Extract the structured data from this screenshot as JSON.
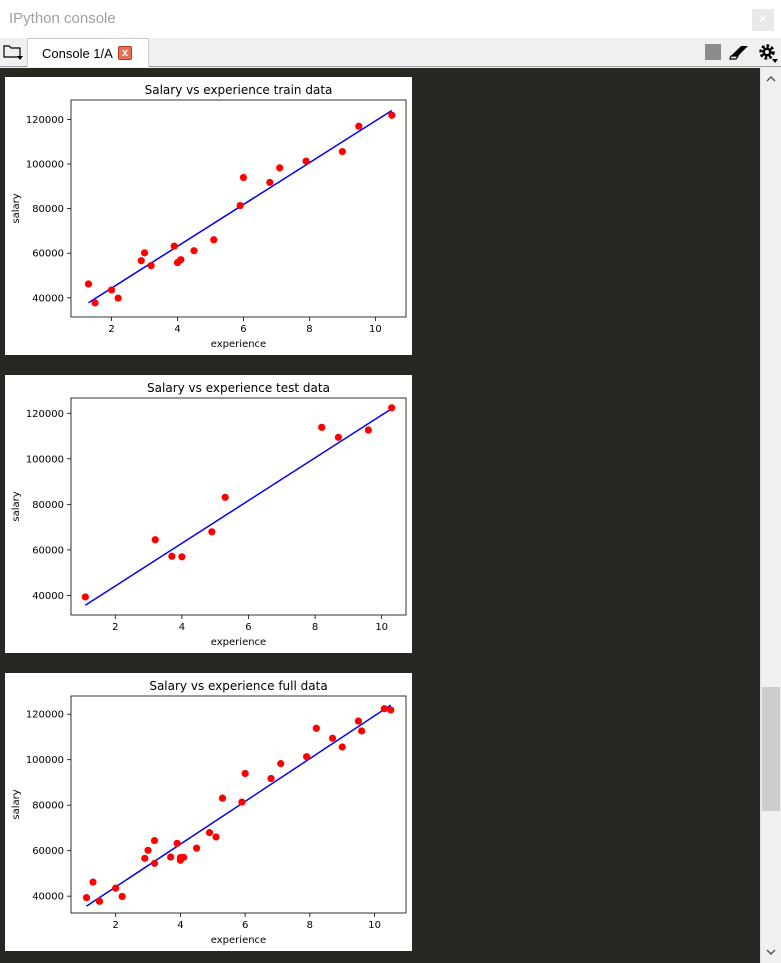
{
  "window": {
    "title": "IPython console",
    "close_glyph": "×"
  },
  "tabbar": {
    "tab_label": "Console 1/A",
    "tab_close_glyph": "x",
    "icons": [
      "folder-options-icon",
      "stop-icon",
      "eraser-icon",
      "gear-icon"
    ]
  },
  "scrollbar": {
    "up_glyph": "^",
    "down_glyph": "v"
  },
  "colors": {
    "console_bg": "#272822",
    "point": "#ff0000",
    "line": "#0000ff"
  },
  "chart_data": [
    {
      "type": "scatter",
      "title": "Salary vs experience train data",
      "xlabel": "experience",
      "ylabel": "salary",
      "xlim": [
        0.77,
        10.93
      ],
      "ylim": [
        31400,
        128700
      ],
      "xticks": [
        2,
        4,
        6,
        8,
        10
      ],
      "yticks": [
        40000,
        60000,
        80000,
        100000,
        120000
      ],
      "points": [
        [
          1.3,
          46205
        ],
        [
          1.5,
          37731
        ],
        [
          2.0,
          43525
        ],
        [
          2.2,
          39891
        ],
        [
          2.9,
          56642
        ],
        [
          3.0,
          60150
        ],
        [
          3.2,
          54445
        ],
        [
          3.9,
          63218
        ],
        [
          4.0,
          55794
        ],
        [
          4.1,
          57081
        ],
        [
          4.5,
          61111
        ],
        [
          5.1,
          66029
        ],
        [
          5.9,
          81363
        ],
        [
          6.0,
          93940
        ],
        [
          6.8,
          91738
        ],
        [
          7.1,
          98273
        ],
        [
          7.9,
          101302
        ],
        [
          9.0,
          105582
        ],
        [
          9.5,
          116969
        ],
        [
          10.5,
          121872
        ]
      ],
      "regression_line": [
        [
          1.3,
          37800
        ],
        [
          10.5,
          124000
        ]
      ]
    },
    {
      "type": "scatter",
      "title": "Salary vs experience test data",
      "xlabel": "experience",
      "ylabel": "salary",
      "xlim": [
        0.67,
        10.73
      ],
      "ylim": [
        31400,
        126700
      ],
      "xticks": [
        2,
        4,
        6,
        8,
        10
      ],
      "yticks": [
        40000,
        60000,
        80000,
        100000,
        120000
      ],
      "points": [
        [
          1.1,
          39343
        ],
        [
          3.2,
          64445
        ],
        [
          3.7,
          57189
        ],
        [
          4.0,
          56957
        ],
        [
          4.9,
          67938
        ],
        [
          5.3,
          83088
        ],
        [
          8.2,
          113812
        ],
        [
          8.7,
          109431
        ],
        [
          9.6,
          112635
        ],
        [
          10.3,
          122391
        ]
      ],
      "regression_line": [
        [
          1.1,
          35700
        ],
        [
          10.3,
          122000
        ]
      ]
    },
    {
      "type": "scatter",
      "title": "Salary vs experience full data",
      "xlabel": "experience",
      "ylabel": "salary",
      "xlim": [
        0.62,
        10.97
      ],
      "ylim": [
        32600,
        128000
      ],
      "xticks": [
        2,
        4,
        6,
        8,
        10
      ],
      "yticks": [
        40000,
        60000,
        80000,
        100000,
        120000
      ],
      "points": [
        [
          1.1,
          39343
        ],
        [
          1.3,
          46205
        ],
        [
          1.5,
          37731
        ],
        [
          2.0,
          43525
        ],
        [
          2.2,
          39891
        ],
        [
          2.9,
          56642
        ],
        [
          3.0,
          60150
        ],
        [
          3.2,
          54445
        ],
        [
          3.2,
          64445
        ],
        [
          3.7,
          57189
        ],
        [
          3.9,
          63218
        ],
        [
          4.0,
          55794
        ],
        [
          4.0,
          56957
        ],
        [
          4.1,
          57081
        ],
        [
          4.5,
          61111
        ],
        [
          4.9,
          67938
        ],
        [
          5.1,
          66029
        ],
        [
          5.3,
          83088
        ],
        [
          5.9,
          81363
        ],
        [
          6.0,
          93940
        ],
        [
          6.8,
          91738
        ],
        [
          7.1,
          98273
        ],
        [
          7.9,
          101302
        ],
        [
          8.2,
          113812
        ],
        [
          8.7,
          109431
        ],
        [
          9.0,
          105582
        ],
        [
          9.5,
          116969
        ],
        [
          9.6,
          112635
        ],
        [
          10.3,
          122391
        ],
        [
          10.5,
          121872
        ]
      ],
      "regression_line": [
        [
          1.1,
          35600
        ],
        [
          10.5,
          124000
        ]
      ]
    }
  ]
}
